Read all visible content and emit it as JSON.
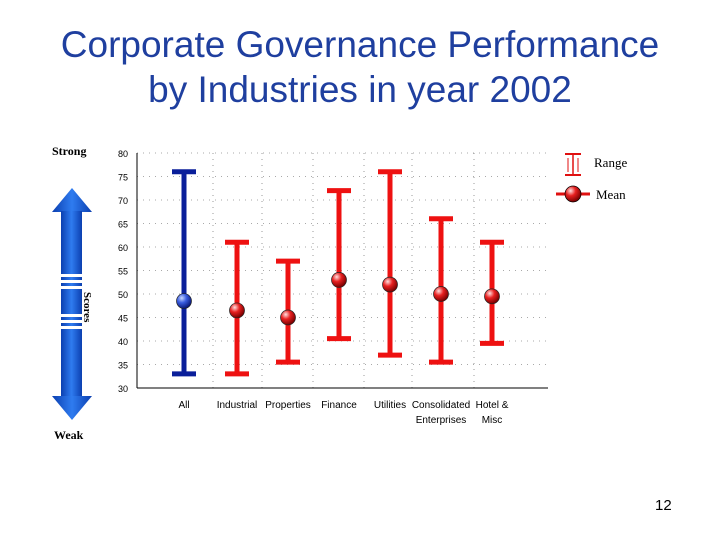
{
  "slide": {
    "title_line1": "Corporate Governance Performance",
    "title_line2": "by Industries in year 2002",
    "page_number": "12",
    "strong_label": "Strong",
    "weak_label": "Weak",
    "scores_label": "Scores"
  },
  "colors": {
    "title": "#1f3f9f",
    "all_series": "#0a1f9a",
    "industry_series": "#ee1111",
    "arrow": "#1560d8"
  },
  "chart_data": {
    "type": "range",
    "title": "Corporate Governance Performance by Industries in year 2002",
    "ylabel": "Scores",
    "ylim": [
      30,
      80
    ],
    "yticks": [
      30,
      35,
      40,
      45,
      50,
      55,
      60,
      65,
      70,
      75,
      80
    ],
    "grid": true,
    "legend_position": "top-right",
    "legend": [
      {
        "label": "Range",
        "symbol": "range-bar"
      },
      {
        "label": "Mean",
        "symbol": "mean-marker"
      }
    ],
    "categories": [
      {
        "label": [
          "All"
        ],
        "min": 33,
        "max": 76,
        "mean": 48.5,
        "color": "blue"
      },
      {
        "label": [
          "Industrial"
        ],
        "min": 33,
        "max": 61,
        "mean": 46.5,
        "color": "red"
      },
      {
        "label": [
          "Properties"
        ],
        "min": 35.5,
        "max": 57,
        "mean": 45,
        "color": "red"
      },
      {
        "label": [
          "Finance"
        ],
        "min": 40.5,
        "max": 72,
        "mean": 53,
        "color": "red"
      },
      {
        "label": [
          "Utilities"
        ],
        "min": 37,
        "max": 76,
        "mean": 52,
        "color": "red"
      },
      {
        "label": [
          "Consolidated",
          "Enterprises"
        ],
        "min": 35.5,
        "max": 66,
        "mean": 50,
        "color": "red"
      },
      {
        "label": [
          "Hotel &",
          "Misc"
        ],
        "min": 39.5,
        "max": 61,
        "mean": 49.5,
        "color": "red"
      }
    ]
  }
}
